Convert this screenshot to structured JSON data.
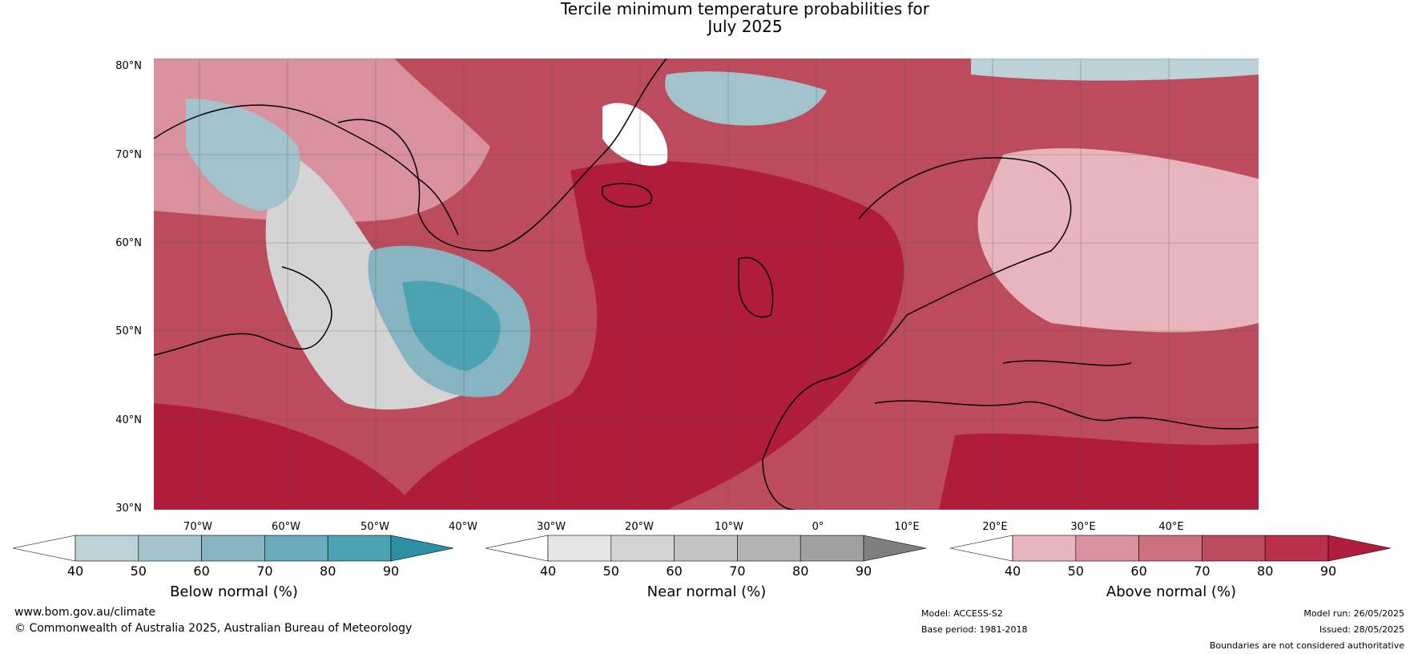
{
  "title": {
    "line1": "Tercile minimum temperature probabilities for",
    "line2": "July 2025"
  },
  "map": {
    "lat_labels": [
      "80°N",
      "70°N",
      "60°N",
      "50°N",
      "40°N",
      "30°N"
    ],
    "lon_labels": [
      "70°W",
      "60°W",
      "50°W",
      "40°W",
      "30°W",
      "20°W",
      "10°W",
      "0°",
      "10°E",
      "20°E",
      "30°E",
      "40°E"
    ],
    "colors": {
      "above": [
        "#e8b5be",
        "#d9919d",
        "#cc6f7e",
        "#bd4b5e",
        "#b01d3c",
        "#ab1533"
      ],
      "below": [
        "#bcd1d8",
        "#a3c3cc",
        "#86b4c1",
        "#69aabb",
        "#4aa2b3",
        "#2b90a4"
      ],
      "near": [
        "#e6e6e6",
        "#d4d4d4",
        "#c4c4c4",
        "#b3b3b3",
        "#a0a0a0",
        "#7e7e7e"
      ],
      "coastline": "#000000",
      "borders": "#808080",
      "gridlines": "#555555"
    }
  },
  "colorbars": [
    {
      "title": "Below normal (%)",
      "ticks": [
        "40",
        "50",
        "60",
        "70",
        "80",
        "90"
      ],
      "colors": [
        "#ffffff",
        "#bcd1d8",
        "#a3c3cc",
        "#86b4c1",
        "#69aabb",
        "#4aa2b3",
        "#2b90a4"
      ]
    },
    {
      "title": "Near normal (%)",
      "ticks": [
        "40",
        "50",
        "60",
        "70",
        "80",
        "90"
      ],
      "colors": [
        "#ffffff",
        "#e6e6e6",
        "#d4d4d4",
        "#c4c4c4",
        "#b3b3b3",
        "#a0a0a0",
        "#7e7e7e"
      ]
    },
    {
      "title": "Above normal (%)",
      "ticks": [
        "40",
        "50",
        "60",
        "70",
        "80",
        "90"
      ],
      "colors": [
        "#ffffff",
        "#e8b5be",
        "#d9919d",
        "#cc6f7e",
        "#bd4b5e",
        "#b8304b",
        "#b01d3c"
      ]
    }
  ],
  "footer": {
    "website": "www.bom.gov.au/climate",
    "copyright": "© Commonwealth of Australia 2025, Australian Bureau of Meteorology",
    "model": "Model: ACCESS-S2",
    "base_period": "Base period: 1981-2018",
    "model_run": "Model run: 26/05/2025",
    "issued": "Issued: 28/05/2025",
    "disclaimer": "Boundaries are not considered authoritative"
  }
}
